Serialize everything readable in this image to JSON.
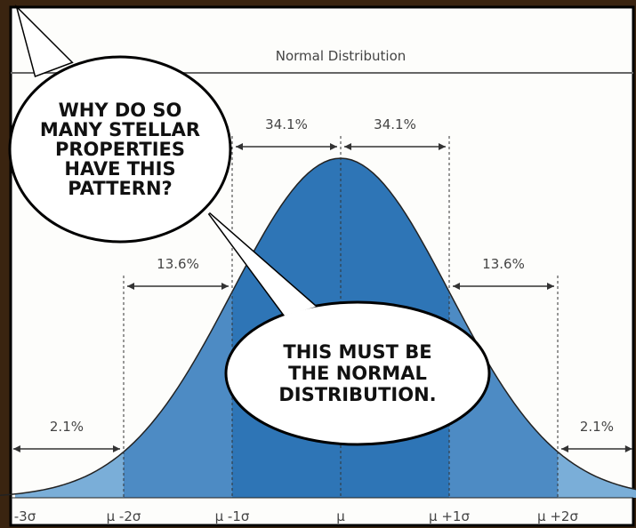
{
  "chart": {
    "title": "Normal Distribution",
    "region_labels": [
      "2.1%",
      "13.6%",
      "34.1%",
      "34.1%",
      "13.6%",
      "2.1%"
    ],
    "axis_labels": [
      "-3σ",
      "μ -2σ",
      "μ -1σ",
      "μ",
      "μ +1σ",
      "μ +2σ"
    ]
  },
  "bubbles": [
    {
      "lines": [
        "WHY DO SO",
        "MANY STELLAR",
        "PROPERTIES",
        "HAVE THIS",
        "PATTERN?"
      ]
    },
    {
      "lines": [
        "THIS MUST BE",
        "THE NORMAL",
        "DISTRIBUTION."
      ]
    }
  ]
}
